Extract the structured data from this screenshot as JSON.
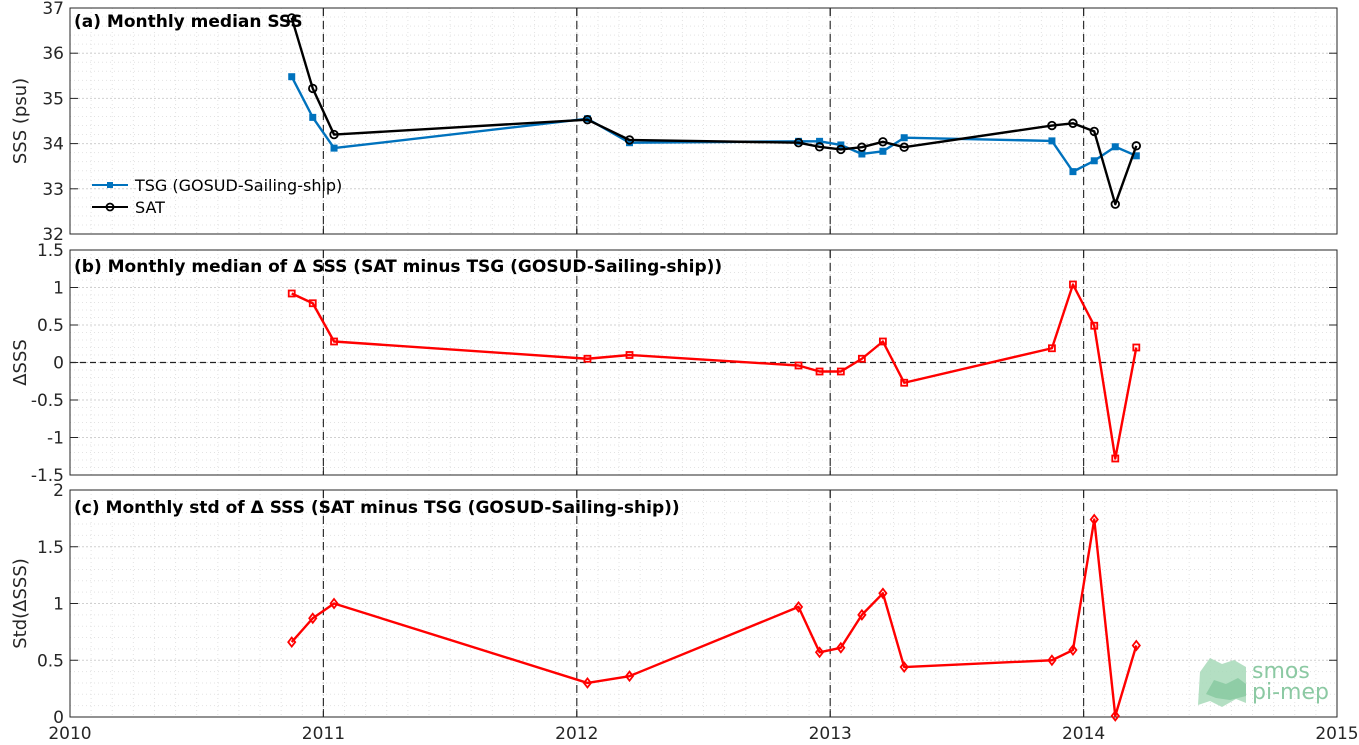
{
  "chart_data": [
    {
      "type": "line",
      "title": "(a) Monthly median SSS",
      "ylabel": "SSS (psu)",
      "xlabel": "",
      "xlim": [
        2010,
        2015
      ],
      "ylim": [
        32,
        37
      ],
      "yticks": [
        32,
        33,
        34,
        35,
        36,
        37
      ],
      "grid": "on",
      "legend_position": "left",
      "series": [
        {
          "name": "TSG (GOSUD-Sailing-ship)",
          "color": "#0072bd",
          "marker": "square",
          "x": [
            2010.875,
            2010.958,
            2011.042,
            2012.042,
            2012.208,
            2012.875,
            2012.958,
            2013.042,
            2013.125,
            2013.208,
            2013.292,
            2013.875,
            2013.958,
            2014.042,
            2014.125,
            2014.208
          ],
          "y": [
            35.48,
            34.58,
            33.9,
            34.55,
            34.02,
            34.05,
            34.05,
            33.97,
            33.77,
            33.83,
            34.13,
            34.06,
            33.38,
            33.62,
            33.93,
            33.73
          ]
        },
        {
          "name": "SAT",
          "color": "#000000",
          "marker": "circle",
          "x": [
            2010.875,
            2010.958,
            2011.042,
            2012.042,
            2012.208,
            2012.875,
            2012.958,
            2013.042,
            2013.125,
            2013.208,
            2013.292,
            2013.875,
            2013.958,
            2014.042,
            2014.125,
            2014.208
          ],
          "y": [
            36.78,
            35.22,
            34.2,
            34.53,
            34.08,
            34.02,
            33.93,
            33.87,
            33.92,
            34.04,
            33.92,
            34.4,
            34.45,
            34.27,
            32.66,
            33.95
          ]
        }
      ]
    },
    {
      "type": "line",
      "title": "(b) Monthly median of Δ SSS (SAT minus TSG (GOSUD-Sailing-ship))",
      "ylabel": "ΔSSS",
      "xlabel": "",
      "xlim": [
        2010,
        2015
      ],
      "ylim": [
        -1.5,
        1.5
      ],
      "yticks": [
        -1.5,
        -1,
        -0.5,
        0,
        0.5,
        1,
        1.5
      ],
      "grid": "on",
      "series": [
        {
          "color": "#ff0000",
          "marker": "square",
          "x": [
            2010.875,
            2010.958,
            2011.042,
            2012.042,
            2012.208,
            2012.875,
            2012.958,
            2013.042,
            2013.125,
            2013.208,
            2013.292,
            2013.875,
            2013.958,
            2014.042,
            2014.125,
            2014.208
          ],
          "y": [
            0.92,
            0.79,
            0.28,
            0.05,
            0.1,
            -0.04,
            -0.12,
            -0.12,
            0.05,
            0.28,
            -0.27,
            0.19,
            1.04,
            0.49,
            -1.28,
            0.2
          ]
        }
      ]
    },
    {
      "type": "line",
      "title": "(c) Monthly std of Δ SSS (SAT minus TSG (GOSUD-Sailing-ship))",
      "ylabel": "Std(ΔSSS)",
      "xlabel": "",
      "xlim": [
        2010,
        2015
      ],
      "ylim": [
        0,
        2
      ],
      "yticks": [
        0,
        0.5,
        1,
        1.5,
        2
      ],
      "xticks": [
        2010,
        2011,
        2012,
        2013,
        2014,
        2015
      ],
      "grid": "on",
      "series": [
        {
          "color": "#ff0000",
          "marker": "diamond",
          "x": [
            2010.875,
            2010.958,
            2011.042,
            2012.042,
            2012.208,
            2012.875,
            2012.958,
            2013.042,
            2013.125,
            2013.208,
            2013.292,
            2013.875,
            2013.958,
            2014.042,
            2014.125,
            2014.208
          ],
          "y": [
            0.66,
            0.87,
            1.0,
            0.3,
            0.36,
            0.97,
            0.57,
            0.61,
            0.9,
            1.09,
            0.44,
            0.5,
            0.59,
            1.74,
            0.01,
            0.63
          ]
        }
      ]
    }
  ],
  "logo": {
    "line1": "smos",
    "line2": "pi-mep"
  }
}
